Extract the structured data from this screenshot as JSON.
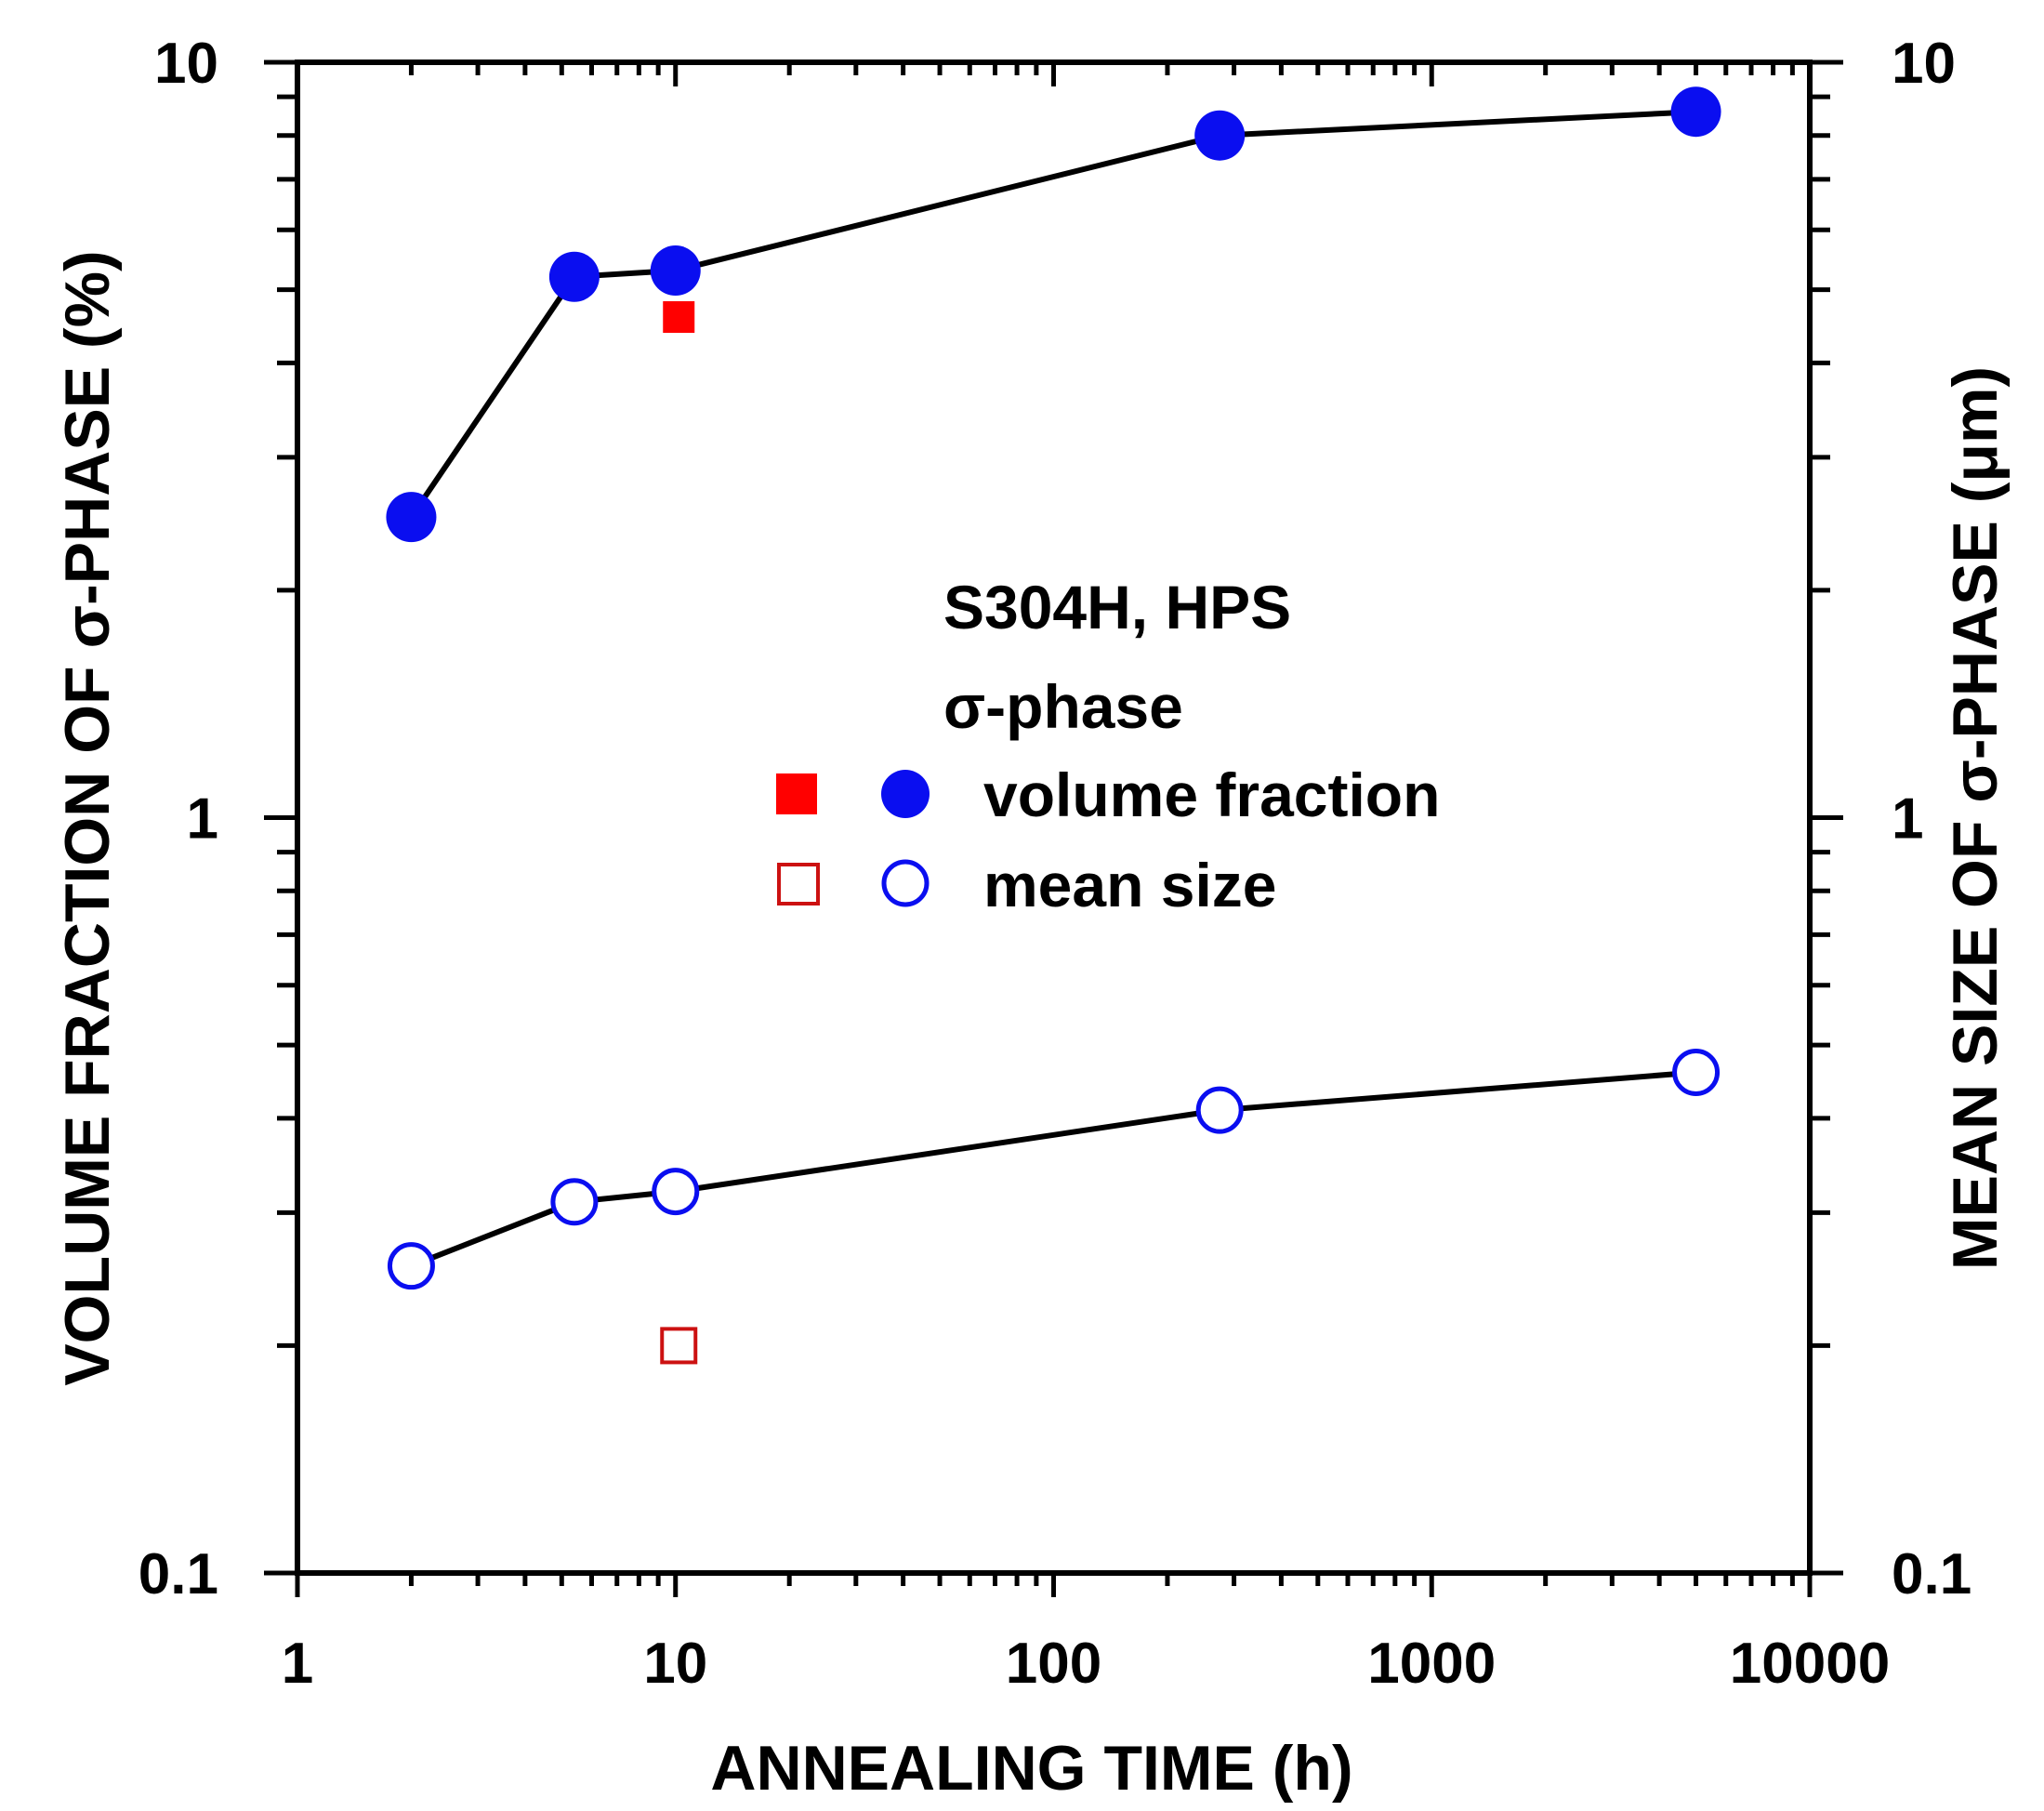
{
  "chart_data": {
    "type": "scatter",
    "xlabel": "ANNEALING TIME (h)",
    "ylabel_left": "VOLUME FRACTION OF σ-PHASE (%)",
    "ylabel_right": "MEAN SIZE OF σ-PHASE (μm)",
    "x_scale": "log",
    "y_scale": "log",
    "xlim": [
      1,
      10000
    ],
    "ylim_left": [
      0.1,
      10
    ],
    "ylim_right": [
      0.1,
      10
    ],
    "x_tick_labels": [
      "1",
      "10",
      "100",
      "1000",
      "10000"
    ],
    "y_left_tick_labels": [
      "0.1",
      "1",
      "10"
    ],
    "y_right_tick_labels": [
      "0.1",
      "1",
      "10"
    ],
    "legend": {
      "title_line1": "S304H, HPS",
      "title_line2": "σ-phase",
      "entries": [
        {
          "label": "volume fraction",
          "markers": [
            "filled red square",
            "filled blue circle"
          ]
        },
        {
          "label": "mean size",
          "markers": [
            "open red square",
            "open blue circle"
          ]
        }
      ]
    },
    "series": [
      {
        "name": "volume fraction (line)",
        "axis": "left",
        "marker": "filled-circle",
        "color": "#0a0ef0",
        "connected": true,
        "points": [
          {
            "x": 2,
            "y": 2.5
          },
          {
            "x": 5.4,
            "y": 5.2
          },
          {
            "x": 10,
            "y": 5.3
          },
          {
            "x": 275,
            "y": 8.0
          },
          {
            "x": 5000,
            "y": 8.6
          }
        ]
      },
      {
        "name": "mean size (line)",
        "axis": "right",
        "marker": "open-circle",
        "color": "#0a0ef0",
        "connected": true,
        "points": [
          {
            "x": 2,
            "y": 0.255
          },
          {
            "x": 5.4,
            "y": 0.31
          },
          {
            "x": 10,
            "y": 0.32
          },
          {
            "x": 275,
            "y": 0.41
          },
          {
            "x": 5000,
            "y": 0.46
          }
        ]
      },
      {
        "name": "volume fraction (square)",
        "axis": "left",
        "marker": "filled-square",
        "color": "#ff0000",
        "connected": false,
        "points": [
          {
            "x": 10.2,
            "y": 4.6
          }
        ]
      },
      {
        "name": "mean size (square)",
        "axis": "right",
        "marker": "open-square",
        "color": "#cc1111",
        "connected": false,
        "points": [
          {
            "x": 10.2,
            "y": 0.2
          }
        ]
      }
    ]
  }
}
